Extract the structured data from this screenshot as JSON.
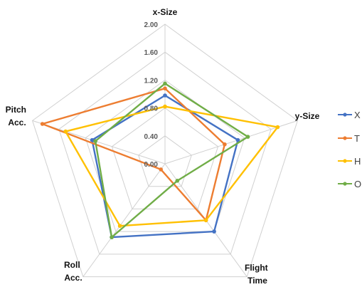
{
  "chart_data": {
    "type": "radar",
    "axes": [
      "x-Size",
      "y-Size",
      "Flight Time",
      "Roll Acc.",
      "Pitch Acc."
    ],
    "rlim": [
      0,
      2.0
    ],
    "ticks": [
      "0.00",
      "0.40",
      "0.80",
      "1.20",
      "1.60",
      "2.00"
    ],
    "tick_values": [
      0,
      0.4,
      0.8,
      1.2,
      1.6,
      2.0
    ],
    "grid": true,
    "legend_position": "right",
    "series": [
      {
        "name": "X",
        "color": "#4472C4",
        "values": [
          0.98,
          1.1,
          1.2,
          1.3,
          1.1
        ]
      },
      {
        "name": "T",
        "color": "#ED7D31",
        "values": [
          1.08,
          0.9,
          1.0,
          0.1,
          1.85
        ]
      },
      {
        "name": "H",
        "color": "#FFC000",
        "values": [
          0.82,
          1.7,
          1.0,
          1.1,
          1.5
        ]
      },
      {
        "name": "O",
        "color": "#70AD47",
        "values": [
          1.15,
          1.25,
          0.3,
          1.3,
          1.05
        ]
      }
    ]
  }
}
